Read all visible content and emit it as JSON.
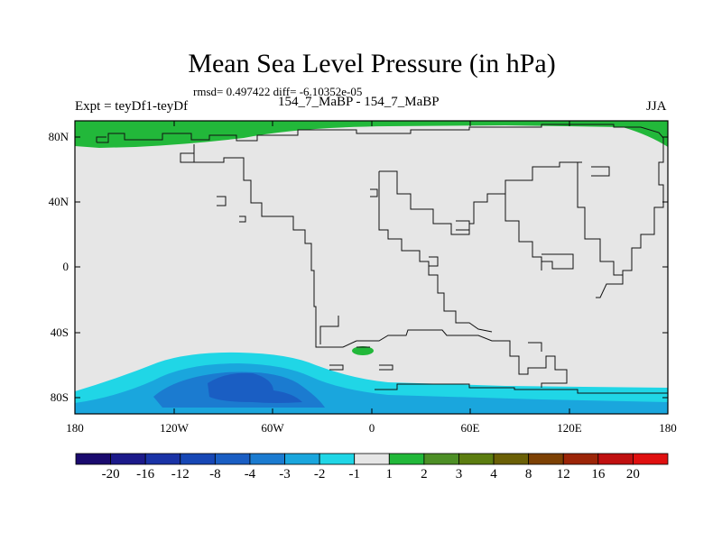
{
  "title": "Mean Sea Level Pressure (in hPa)",
  "stats": "rmsd= 0.497422 diff= -6.10352e-05",
  "experiment": "Expt = teyDf1-teyDf",
  "case": "154_7_MaBP - 154_7_MaBP",
  "season": "JJA",
  "lat_labels": [
    "80N",
    "40N",
    "0",
    "40S",
    "80S"
  ],
  "lon_labels": [
    "180",
    "120W",
    "60W",
    "0",
    "60E",
    "120E",
    "180"
  ],
  "colorbar": {
    "labels": [
      "-20",
      "-16",
      "-12",
      "-8",
      "-4",
      "-3",
      "-2",
      "-1",
      "1",
      "2",
      "3",
      "4",
      "8",
      "12",
      "16",
      "20"
    ],
    "colors": [
      "#1a0a6e",
      "#1c1a8a",
      "#1a33a6",
      "#1747b5",
      "#1a5ec3",
      "#1b7bd0",
      "#1aa6dd",
      "#20d6e6",
      "#e6e6e6",
      "#22b83a",
      "#4d8f26",
      "#5c7d10",
      "#6b6006",
      "#7d4104",
      "#9c2508",
      "#c01010",
      "#e01010"
    ]
  }
}
